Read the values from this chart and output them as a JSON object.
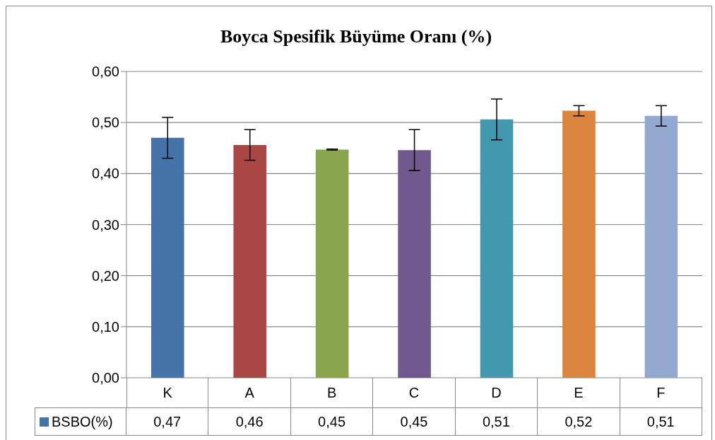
{
  "chart_data": {
    "type": "bar",
    "title": "Boyca Spesifik Büyüme Oranı (%)",
    "categories": [
      "K",
      "A",
      "B",
      "C",
      "D",
      "E",
      "F"
    ],
    "series": [
      {
        "name": "BSBO(%)",
        "color": "#4572a7",
        "colors": [
          "#4572a7",
          "#aa4643",
          "#89a54e",
          "#71588f",
          "#4198af",
          "#db843d",
          "#93a9cf"
        ],
        "values": [
          0.47,
          0.456,
          0.447,
          0.446,
          0.506,
          0.523,
          0.513
        ],
        "errors": [
          0.04,
          0.03,
          0.001,
          0.04,
          0.04,
          0.01,
          0.02
        ],
        "value_labels": [
          "0,47",
          "0,46",
          "0,45",
          "0,45",
          "0,51",
          "0,52",
          "0,51"
        ]
      }
    ],
    "ylim": [
      0,
      0.6
    ],
    "yticks": [
      {
        "value": 0,
        "label": "0,00"
      },
      {
        "value": 0.1,
        "label": "0,10"
      },
      {
        "value": 0.2,
        "label": "0,20"
      },
      {
        "value": 0.3,
        "label": "0,30"
      },
      {
        "value": 0.4,
        "label": "0,40"
      },
      {
        "value": 0.5,
        "label": "0,50"
      },
      {
        "value": 0.6,
        "label": "0,60"
      }
    ],
    "grid": "y",
    "legend": "bottom"
  }
}
